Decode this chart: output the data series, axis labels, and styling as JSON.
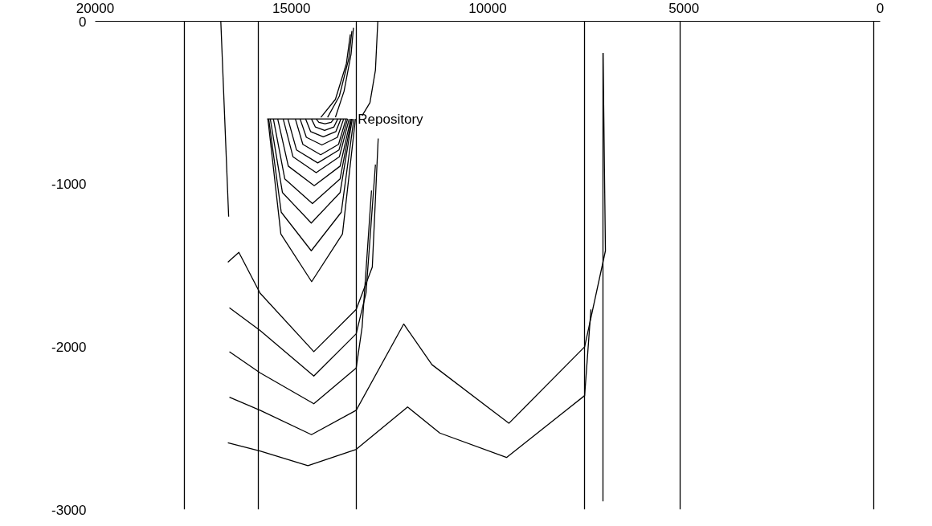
{
  "chart_data": {
    "type": "line",
    "xlim": [
      20000,
      0
    ],
    "xticks": [
      20000,
      15000,
      10000,
      5000,
      0
    ],
    "ylim": [
      -3000,
      0
    ],
    "yticks": [
      0,
      -1000,
      -2000,
      -3000
    ],
    "grid": false,
    "marker": "none",
    "line_style": "solid",
    "annotations": [
      {
        "text": "Repository",
        "x": 13310,
        "y": -600
      }
    ],
    "series": [
      {
        "color": "#000000",
        "x": [
          17728,
          17728
        ],
        "values": [
          0,
          -3000
        ]
      },
      {
        "color": "#000000",
        "x": [
          15844,
          15844
        ],
        "values": [
          0,
          -3000
        ]
      },
      {
        "color": "#000000",
        "x": [
          13347,
          13347
        ],
        "values": [
          0,
          -3000
        ]
      },
      {
        "color": "#000000",
        "x": [
          7533,
          7533
        ],
        "values": [
          0,
          -3000
        ]
      },
      {
        "color": "#000000",
        "x": [
          5097,
          5097
        ],
        "values": [
          0,
          -3000
        ]
      },
      {
        "color": "#000000",
        "x": [
          164,
          164
        ],
        "values": [
          0,
          -3000
        ]
      },
      {
        "color": "#000000",
        "x": [
          7063,
          7063
        ],
        "values": [
          -195,
          -2950
        ]
      },
      {
        "color": "#000000",
        "x": [
          16800,
          16700,
          16600
        ],
        "values": [
          0,
          -600,
          -1200
        ]
      },
      {
        "color": "#000000",
        "x": [
          15619,
          13572
        ],
        "values": [
          -600,
          -600
        ]
      },
      {
        "color": "#000000",
        "x": [
          14370,
          14300,
          14145,
          13990,
          13920
        ],
        "values": [
          -600,
          -621,
          -630,
          -621,
          -600
        ]
      },
      {
        "color": "#000000",
        "x": [
          14490,
          14390,
          14155,
          13920,
          13820
        ],
        "values": [
          -600,
          -650,
          -670,
          -650,
          -600
        ]
      },
      {
        "color": "#000000",
        "x": [
          14640,
          14510,
          14190,
          13870,
          13740
        ],
        "values": [
          -600,
          -678,
          -710,
          -678,
          -600
        ]
      },
      {
        "color": "#000000",
        "x": [
          14780,
          14620,
          14225,
          13830,
          13670
        ],
        "values": [
          -600,
          -713,
          -760,
          -713,
          -600
        ]
      },
      {
        "color": "#000000",
        "x": [
          14900,
          14710,
          14255,
          13800,
          13610
        ],
        "values": [
          -600,
          -756,
          -820,
          -756,
          -600
        ]
      },
      {
        "color": "#000000",
        "x": [
          15090,
          14870,
          14330,
          13790,
          13570
        ],
        "values": [
          -600,
          -791,
          -870,
          -791,
          -600
        ]
      },
      {
        "color": "#000000",
        "x": [
          15210,
          14960,
          14370,
          13780,
          13530
        ],
        "values": [
          -600,
          -833,
          -930,
          -833,
          -600
        ]
      },
      {
        "color": "#000000",
        "x": [
          15350,
          15080,
          14420,
          13760,
          13490
        ],
        "values": [
          -600,
          -890,
          -1010,
          -890,
          -600
        ]
      },
      {
        "color": "#000000",
        "x": [
          15460,
          15170,
          14465,
          13760,
          13470
        ],
        "values": [
          -600,
          -968,
          -1120,
          -968,
          -600
        ]
      },
      {
        "color": "#000000",
        "x": [
          15540,
          15230,
          14495,
          13760,
          13450
        ],
        "values": [
          -600,
          -1052,
          -1240,
          -1052,
          -600
        ]
      },
      {
        "color": "#000000",
        "x": [
          15580,
          15260,
          14495,
          13730,
          13410
        ],
        "values": [
          -600,
          -1173,
          -1410,
          -1173,
          -600
        ]
      },
      {
        "color": "#000000",
        "x": [
          15600,
          15270,
          14485,
          13700,
          13370
        ],
        "values": [
          -600,
          -1307,
          -1600,
          -1307,
          -600
        ]
      },
      {
        "color": "#000000",
        "x": [
          14250,
          13880,
          13600,
          13500
        ],
        "values": [
          -590,
          -480,
          -260,
          -80
        ]
      },
      {
        "color": "#000000",
        "x": [
          14080,
          13780,
          13540,
          13460
        ],
        "values": [
          -590,
          -460,
          -230,
          -60
        ]
      },
      {
        "color": "#000000",
        "x": [
          13880,
          13660,
          13480,
          13420
        ],
        "values": [
          -590,
          -430,
          -200,
          -40
        ]
      },
      {
        "color": "#000000",
        "x": [
          12800,
          12860,
          13000,
          13200
        ],
        "values": [
          0,
          -300,
          -500,
          -580
        ]
      },
      {
        "color": "#000000",
        "x": [
          16620,
          16340,
          15800,
          14430,
          13350,
          12940,
          12790
        ],
        "values": [
          -1480,
          -1420,
          -1670,
          -2030,
          -1770,
          -1510,
          -720
        ]
      },
      {
        "color": "#000000",
        "x": [
          16580,
          15800,
          14430,
          13350,
          13100,
          12860
        ],
        "values": [
          -1760,
          -1900,
          -2180,
          -1920,
          -1670,
          -880
        ]
      },
      {
        "color": "#000000",
        "x": [
          16580,
          15800,
          14430,
          13350,
          13200,
          12960
        ],
        "values": [
          -2030,
          -2160,
          -2350,
          -2130,
          -1880,
          -1040
        ]
      },
      {
        "color": "#000000",
        "x": [
          16580,
          15800,
          14490,
          13350,
          12140,
          11420,
          9460,
          7530,
          7000,
          7060
        ],
        "values": [
          -2310,
          -2390,
          -2540,
          -2390,
          -1860,
          -2110,
          -2470,
          -2000,
          -1410,
          -195
        ]
      },
      {
        "color": "#000000",
        "x": [
          16620,
          15800,
          14580,
          13350,
          12040,
          11220,
          9520,
          7530,
          7370
        ],
        "values": [
          -2590,
          -2640,
          -2730,
          -2630,
          -2370,
          -2530,
          -2680,
          -2300,
          -1770
        ]
      }
    ]
  }
}
